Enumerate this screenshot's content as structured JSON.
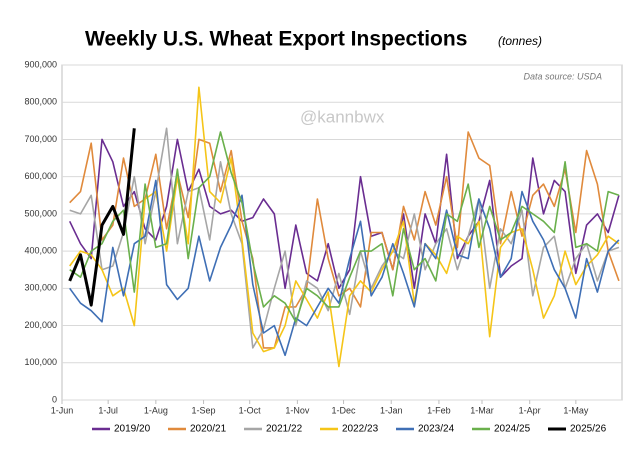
{
  "chart_data": {
    "type": "line",
    "title": "Weekly U.S. Wheat Export Inspections",
    "subtitle": "(tonnes)",
    "annotation": "Data source: USDA",
    "watermark": "@kannbwx",
    "x": [
      5,
      12,
      19,
      26,
      33,
      40,
      47,
      54,
      61,
      68,
      75,
      82,
      89,
      96,
      103,
      110,
      117,
      124,
      131,
      138,
      145,
      152,
      159,
      166,
      173,
      180,
      187,
      194,
      201,
      208,
      215,
      222,
      229,
      236,
      243,
      250,
      257,
      264,
      271,
      278,
      285,
      292,
      299,
      306,
      313,
      320,
      327,
      334,
      341,
      348,
      355,
      362
    ],
    "xlim": [
      0,
      364
    ],
    "xticks": [
      {
        "value": 0,
        "label": "1-Jun"
      },
      {
        "value": 30,
        "label": "1-Jul"
      },
      {
        "value": 61,
        "label": "1-Aug"
      },
      {
        "value": 92,
        "label": "1-Sep"
      },
      {
        "value": 122,
        "label": "1-Oct"
      },
      {
        "value": 153,
        "label": "1-Nov"
      },
      {
        "value": 183,
        "label": "1-Dec"
      },
      {
        "value": 214,
        "label": "1-Jan"
      },
      {
        "value": 245,
        "label": "1-Feb"
      },
      {
        "value": 273,
        "label": "1-Mar"
      },
      {
        "value": 304,
        "label": "1-Apr"
      },
      {
        "value": 334,
        "label": "1-May"
      }
    ],
    "ylim": [
      0,
      900000
    ],
    "yticks": [
      {
        "value": 0,
        "label": "0"
      },
      {
        "value": 100000,
        "label": "100,000"
      },
      {
        "value": 200000,
        "label": "200,000"
      },
      {
        "value": 300000,
        "label": "300,000"
      },
      {
        "value": 400000,
        "label": "400,000"
      },
      {
        "value": 500000,
        "label": "500,000"
      },
      {
        "value": 600000,
        "label": "600,000"
      },
      {
        "value": 700000,
        "label": "700,000"
      },
      {
        "value": 800000,
        "label": "800,000"
      },
      {
        "value": 900000,
        "label": "900,000"
      }
    ],
    "grid": true,
    "series": [
      {
        "name": "2019/20",
        "color": "#6a2d91",
        "values": [
          480000,
          420000,
          380000,
          700000,
          640000,
          520000,
          560000,
          460000,
          430000,
          520000,
          700000,
          560000,
          620000,
          520000,
          500000,
          510000,
          480000,
          490000,
          540000,
          500000,
          300000,
          470000,
          340000,
          320000,
          420000,
          300000,
          350000,
          600000,
          440000,
          450000,
          350000,
          500000,
          300000,
          500000,
          420000,
          660000,
          380000,
          440000,
          480000,
          590000,
          330000,
          360000,
          380000,
          650000,
          500000,
          590000,
          560000,
          340000,
          470000,
          500000,
          450000,
          550000
        ]
      },
      {
        "name": "2020/21",
        "color": "#e08a3c",
        "values": [
          530000,
          560000,
          690000,
          430000,
          470000,
          650000,
          520000,
          540000,
          660000,
          460000,
          610000,
          490000,
          700000,
          690000,
          560000,
          670000,
          480000,
          380000,
          140000,
          140000,
          250000,
          250000,
          300000,
          540000,
          380000,
          280000,
          300000,
          250000,
          450000,
          450000,
          350000,
          520000,
          430000,
          560000,
          470000,
          600000,
          410000,
          720000,
          650000,
          630000,
          420000,
          560000,
          440000,
          550000,
          580000,
          520000,
          620000,
          450000,
          670000,
          580000,
          400000,
          320000
        ]
      },
      {
        "name": "2021/22",
        "color": "#a6a6a6",
        "values": [
          510000,
          500000,
          550000,
          350000,
          360000,
          450000,
          600000,
          420000,
          560000,
          730000,
          420000,
          560000,
          570000,
          430000,
          640000,
          500000,
          420000,
          140000,
          190000,
          300000,
          400000,
          200000,
          320000,
          300000,
          240000,
          340000,
          230000,
          400000,
          300000,
          360000,
          400000,
          380000,
          500000,
          350000,
          420000,
          460000,
          350000,
          440000,
          540000,
          300000,
          460000,
          420000,
          510000,
          280000,
          410000,
          440000,
          300000,
          380000,
          420000,
          320000,
          400000,
          410000
        ]
      },
      {
        "name": "2022/23",
        "color": "#f5c518",
        "values": [
          360000,
          400000,
          390000,
          350000,
          280000,
          300000,
          200000,
          540000,
          560000,
          400000,
          600000,
          420000,
          840000,
          560000,
          530000,
          650000,
          430000,
          180000,
          130000,
          140000,
          200000,
          320000,
          270000,
          220000,
          290000,
          90000,
          280000,
          320000,
          290000,
          350000,
          400000,
          480000,
          260000,
          420000,
          390000,
          340000,
          440000,
          420000,
          480000,
          170000,
          410000,
          450000,
          460000,
          350000,
          220000,
          280000,
          400000,
          310000,
          360000,
          390000,
          440000,
          420000
        ]
      },
      {
        "name": "2023/24",
        "color": "#3f6fb5",
        "values": [
          300000,
          260000,
          240000,
          210000,
          410000,
          280000,
          420000,
          440000,
          590000,
          310000,
          270000,
          300000,
          440000,
          320000,
          410000,
          470000,
          550000,
          310000,
          180000,
          200000,
          120000,
          220000,
          200000,
          250000,
          300000,
          260000,
          380000,
          480000,
          280000,
          330000,
          420000,
          340000,
          250000,
          420000,
          380000,
          510000,
          390000,
          380000,
          540000,
          460000,
          330000,
          380000,
          560000,
          480000,
          430000,
          350000,
          300000,
          220000,
          380000,
          290000,
          400000,
          430000
        ]
      },
      {
        "name": "2024/25",
        "color": "#6ab04c",
        "values": [
          350000,
          330000,
          400000,
          420000,
          480000,
          510000,
          290000,
          580000,
          410000,
          420000,
          620000,
          380000,
          570000,
          600000,
          720000,
          610000,
          530000,
          370000,
          250000,
          280000,
          260000,
          210000,
          300000,
          280000,
          250000,
          250000,
          330000,
          400000,
          400000,
          420000,
          280000,
          460000,
          350000,
          380000,
          320000,
          500000,
          480000,
          580000,
          410000,
          520000,
          430000,
          450000,
          520000,
          500000,
          480000,
          450000,
          640000,
          410000,
          420000,
          400000,
          560000,
          550000
        ]
      },
      {
        "name": "2025/26",
        "color": "#000000",
        "width": 3,
        "values": [
          320000,
          390000,
          255000,
          470000,
          520000,
          445000,
          730000,
          null,
          null,
          null,
          null,
          null,
          null,
          null,
          null,
          null,
          null,
          null,
          null,
          null,
          null,
          null,
          null,
          null,
          null,
          null,
          null,
          null,
          null,
          null,
          null,
          null,
          null,
          null,
          null,
          null,
          null,
          null,
          null,
          null,
          null,
          null,
          null,
          null,
          null,
          null,
          null,
          null,
          null,
          null,
          null,
          null
        ]
      }
    ]
  }
}
